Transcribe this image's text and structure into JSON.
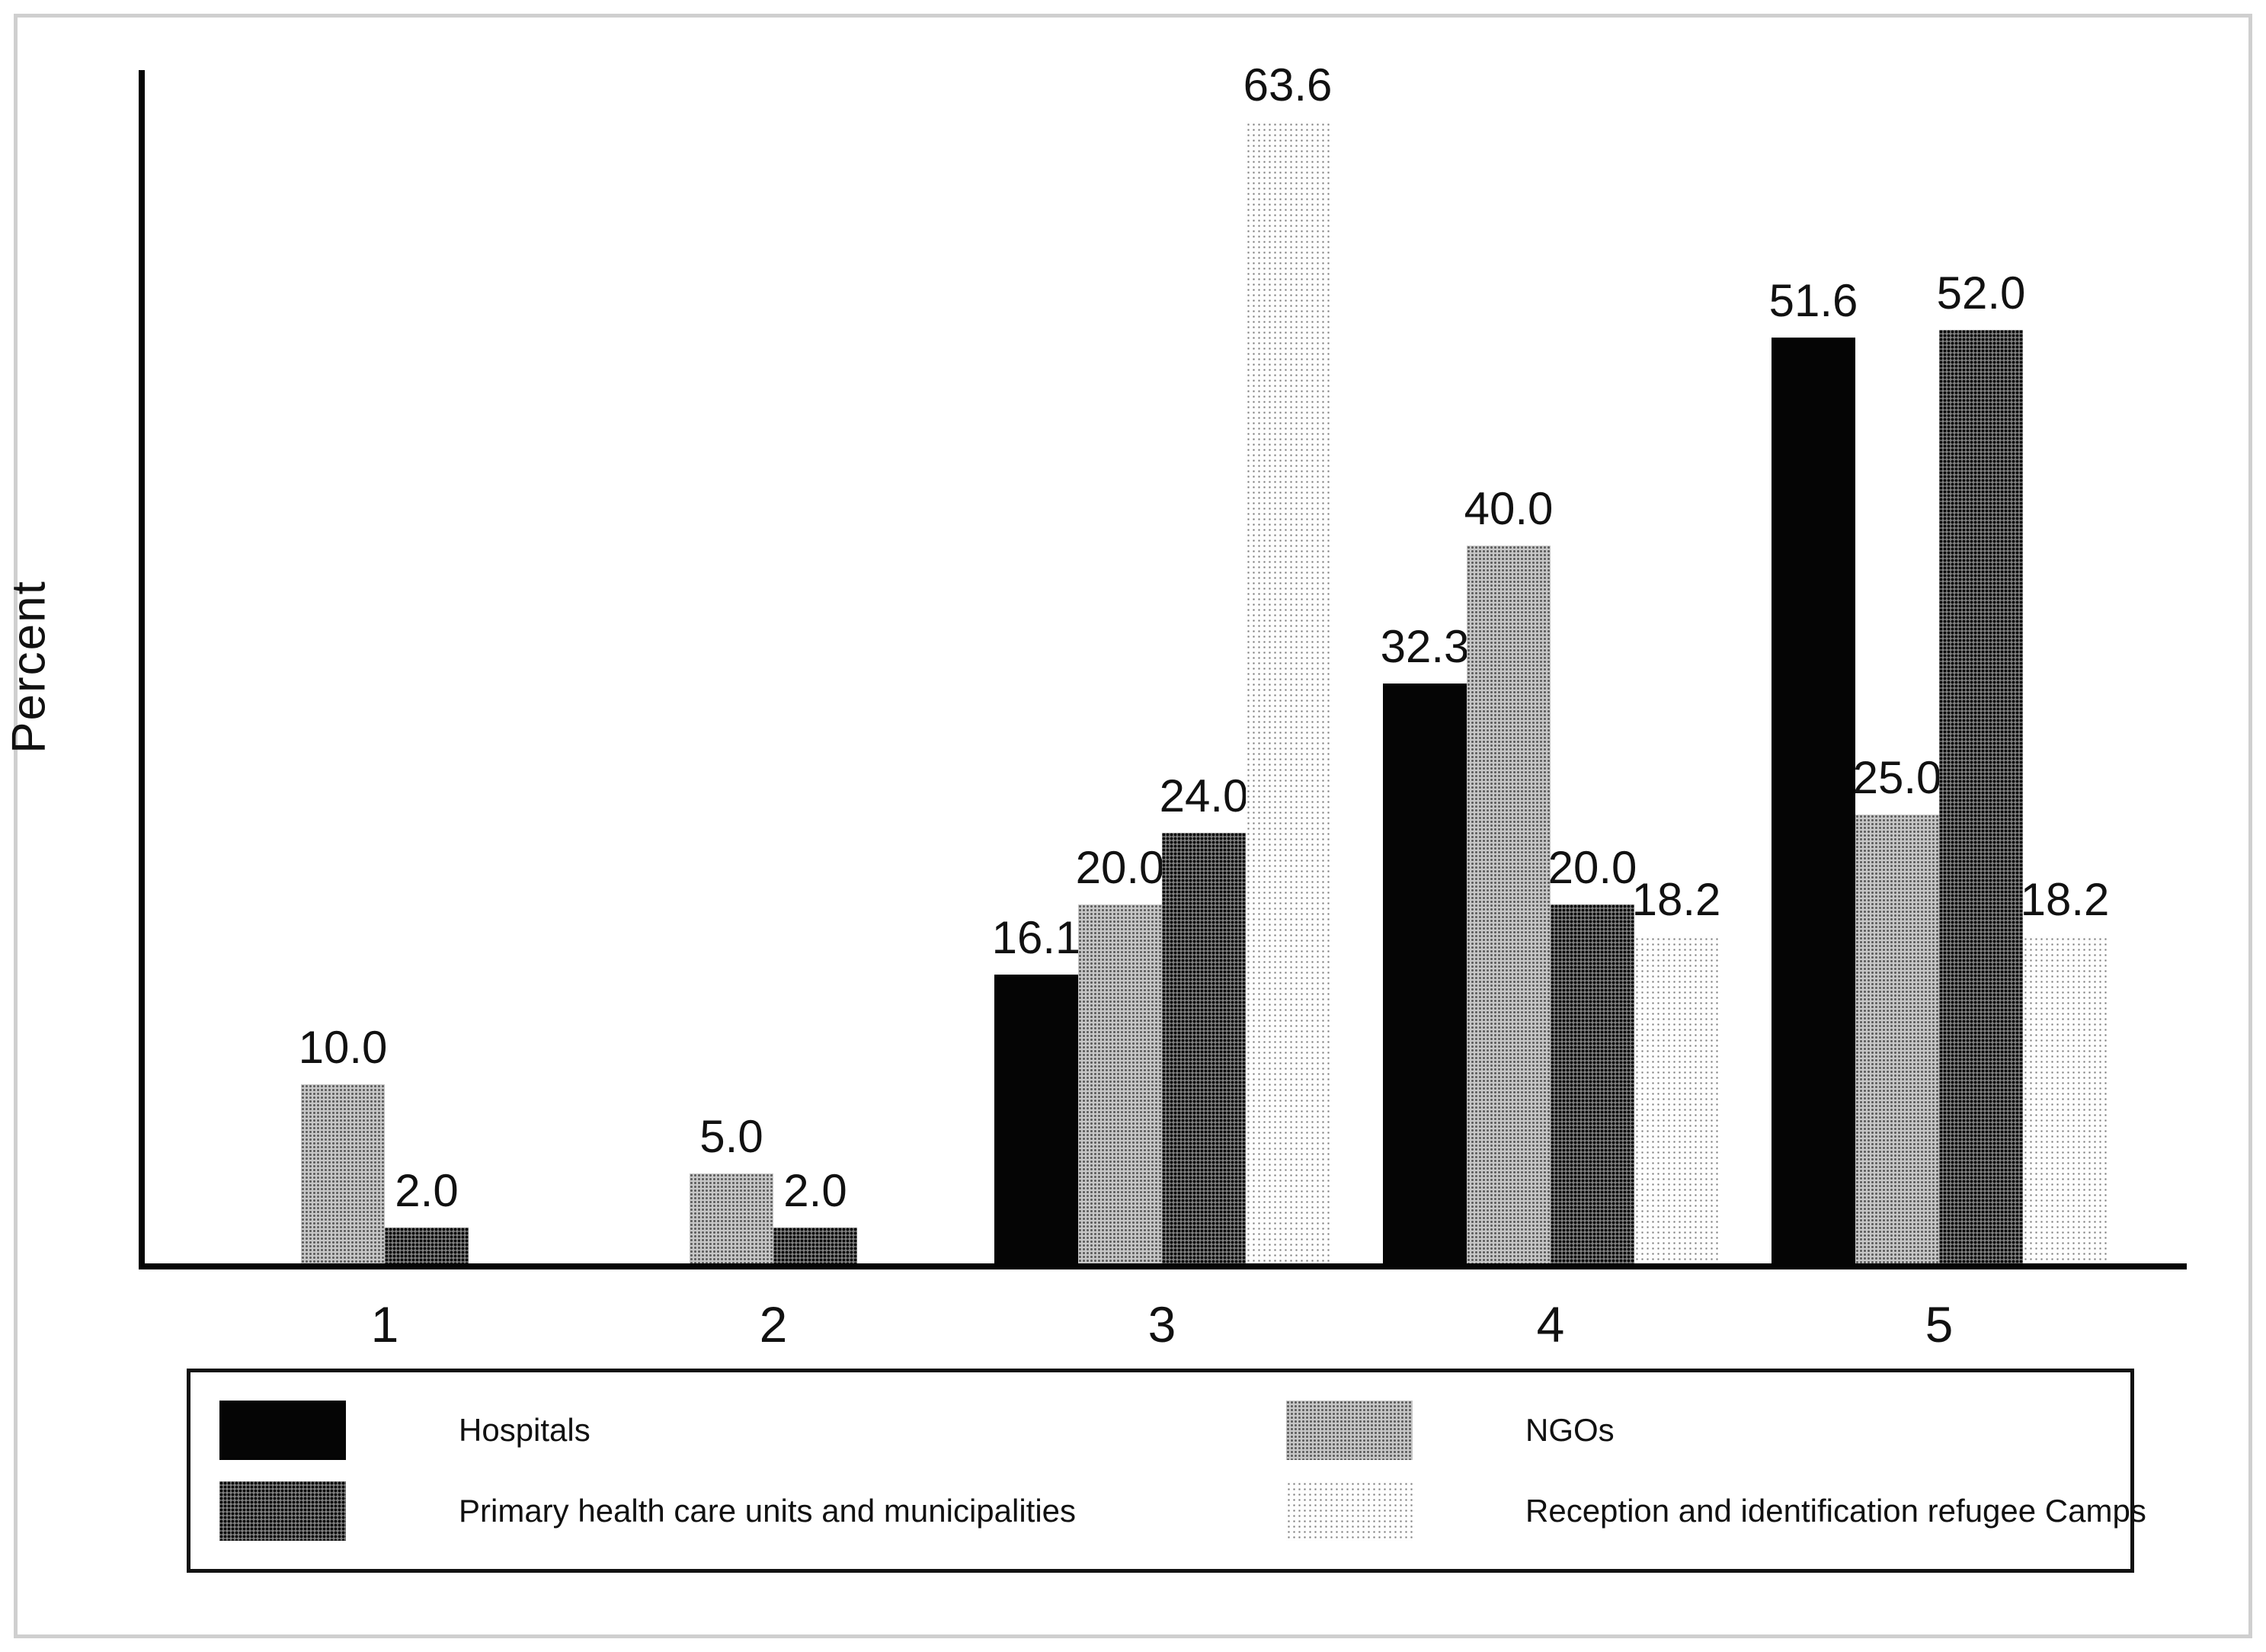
{
  "chart_data": {
    "type": "bar",
    "title": "",
    "xlabel": "",
    "ylabel": "Percent",
    "ylim": [
      0,
      66.5
    ],
    "grid": false,
    "legend_position": "bottom-box",
    "value_label_format": "one-decimal",
    "categories": [
      "1",
      "2",
      "3",
      "4",
      "5"
    ],
    "series": [
      {
        "name": "Hospitals",
        "fill": "black-solid",
        "color": "#050505",
        "values": [
          null,
          null,
          16.1,
          32.3,
          51.6
        ]
      },
      {
        "name": "NGOs",
        "fill": "gray-halftone",
        "color": "#a8a8a8",
        "values": [
          10.0,
          5.0,
          20.0,
          40.0,
          25.0
        ]
      },
      {
        "name": "Primary health care units and municipalities",
        "fill": "darkgray-halftone",
        "color": "#5f5f5f",
        "values": [
          2.0,
          2.0,
          24.0,
          20.0,
          52.0
        ]
      },
      {
        "name": "Reception and identification refugee Camps",
        "fill": "lightdot-halftone",
        "color": "#efefef",
        "values": [
          null,
          null,
          63.6,
          18.2,
          18.2
        ]
      }
    ]
  },
  "axis": {
    "axis_color": "#050505",
    "frame_color": "#cfcfcf"
  }
}
